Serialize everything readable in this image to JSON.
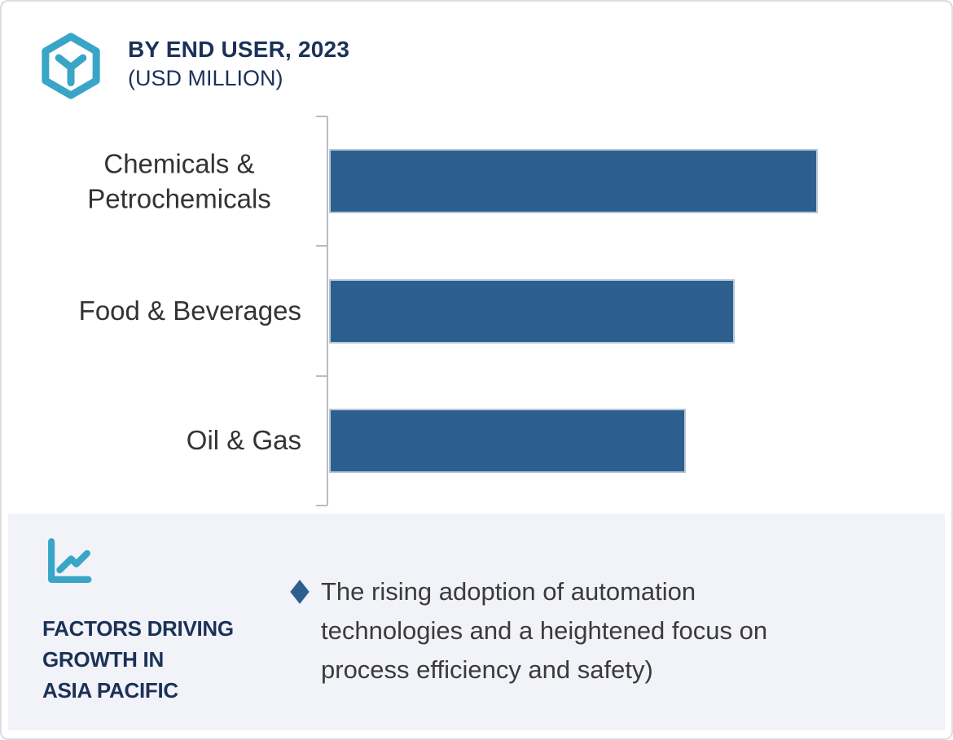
{
  "header": {
    "title": "BY END USER, 2023",
    "subtitle": "(USD MILLION)"
  },
  "chart_data": {
    "type": "bar",
    "orientation": "horizontal",
    "title": "BY END USER, 2023",
    "unit_label": "(USD MILLION)",
    "categories": [
      "Chemicals & Petrochemicals",
      "Food & Beverages",
      "Oil & Gas"
    ],
    "values_relative_pct": [
      100,
      83,
      73
    ],
    "data_labels_visible": false,
    "value_axis_visible": false,
    "grid": false,
    "legend_position": "none",
    "note": "bars carry no numeric labels; lengths estimated relative to longest bar = 100",
    "bar_color": "#2D5F8E",
    "bar_border_color": "#B5C7D9",
    "axis_color": "#BBBCBF"
  },
  "panel": {
    "title_lines": [
      "FACTORS DRIVING",
      "GROWTH IN",
      "ASIA PACIFIC"
    ],
    "bullet_text": "The rising adoption of automation technologies and a heightened focus on process efficiency and safety)"
  },
  "icons": {
    "logo": "hexagon-cube-icon",
    "panel": "trend-line-chart-icon",
    "bullet": "diamond-bullet-icon"
  },
  "colors": {
    "teal": "#39A5C7",
    "navy": "#1B3158",
    "bar_blue": "#2D5F8E",
    "panel_bg": "#F2F3F8",
    "body_text": "#3B3B3B"
  }
}
